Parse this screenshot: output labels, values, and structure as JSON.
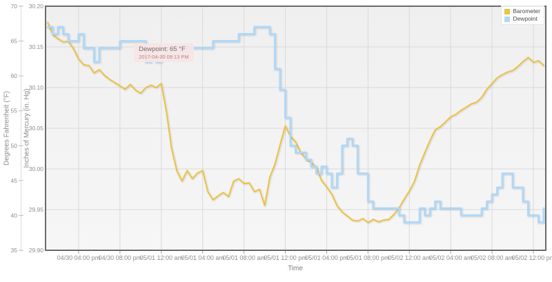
{
  "chart_data": {
    "type": "line",
    "title": "",
    "x_axis": {
      "label": "Time",
      "tick_labels": [
        "04/30 04:00 pm",
        "04/30 08:00 pm",
        "05/01 12:00 am",
        "05/01 04:00 am",
        "05/01 08:00 am",
        "05/01 12:00 pm",
        "05/01 04:00 pm",
        "05/01 08:00 pm",
        "05/02 12:00 am",
        "05/02 04:00 am",
        "05/02 08:00 am",
        "05/02 12:00 pm"
      ],
      "tick_hours": [
        3,
        7,
        11,
        15,
        19,
        23,
        27,
        31,
        35,
        39,
        43,
        47
      ],
      "domain_hours": [
        -0.2,
        48.2
      ],
      "hours_start": 0,
      "hours_step": 0.5
    },
    "y_axis_f": {
      "label": "Degrees Fahrenheit (°F)",
      "tick_labels": [
        "70",
        "65",
        "60",
        "55",
        "50",
        "45",
        "40",
        "35"
      ],
      "tick_values": [
        70,
        65,
        60,
        55,
        50,
        45,
        40,
        35
      ],
      "range": [
        35,
        70
      ]
    },
    "y_axis_hg": {
      "label": "Inches of Mercury (in. Hg)",
      "tick_labels": [
        "30.20",
        "30.15",
        "30.10",
        "30.05",
        "30.00",
        "29.95",
        "29.90"
      ],
      "tick_values": [
        30.2,
        30.15,
        30.1,
        30.05,
        30.0,
        29.95,
        29.9
      ],
      "range": [
        29.9,
        30.2
      ]
    },
    "series": [
      {
        "name": "Barometer",
        "color": "#edc240",
        "axis": "hg",
        "step": false,
        "values": [
          30.18,
          30.165,
          30.16,
          30.156,
          30.157,
          30.148,
          30.135,
          30.128,
          30.127,
          30.118,
          30.122,
          30.115,
          30.11,
          30.106,
          30.102,
          30.098,
          30.104,
          30.097,
          30.093,
          30.1,
          30.103,
          30.1,
          30.105,
          30.07,
          30.025,
          29.998,
          29.985,
          29.998,
          29.988,
          29.995,
          29.998,
          29.972,
          29.962,
          29.967,
          29.971,
          29.966,
          29.985,
          29.988,
          29.982,
          29.983,
          29.972,
          29.975,
          29.955,
          29.99,
          30.006,
          30.03,
          30.053,
          30.04,
          30.033,
          30.02,
          30.012,
          30.008,
          30.002,
          29.986,
          29.978,
          29.969,
          29.955,
          29.947,
          29.942,
          29.937,
          29.936,
          29.939,
          29.934,
          29.938,
          29.935,
          29.937,
          29.938,
          29.944,
          29.952,
          29.963,
          29.973,
          29.985,
          30.005,
          30.02,
          30.035,
          30.048,
          30.052,
          30.058,
          30.064,
          30.067,
          30.072,
          30.076,
          30.08,
          30.082,
          30.088,
          30.098,
          30.105,
          30.112,
          30.116,
          30.119,
          30.121,
          30.126,
          30.132,
          30.137,
          30.131,
          30.133,
          30.127
        ]
      },
      {
        "name": "Dewpoint",
        "color": "#afd8f8",
        "axis": "f",
        "step": true,
        "values": [
          67,
          66,
          67,
          66,
          65,
          65,
          66,
          64,
          64,
          62,
          64,
          64,
          64,
          64,
          65,
          65,
          65,
          65,
          65,
          62,
          63,
          62,
          63,
          64,
          64,
          64,
          64,
          64,
          64,
          64,
          64,
          64,
          65,
          65,
          65,
          65,
          65,
          66,
          66,
          66,
          67,
          67,
          67,
          66,
          61,
          58,
          54,
          50,
          49,
          49,
          48,
          47,
          46,
          47,
          46,
          44,
          46,
          50,
          51,
          50,
          46,
          46,
          42,
          41,
          41,
          41,
          41,
          41,
          40,
          39,
          39,
          39,
          41,
          40,
          41,
          42,
          41,
          41,
          41,
          41,
          40,
          40,
          40,
          40,
          41,
          42,
          43,
          44,
          46,
          46,
          44,
          44,
          42,
          40,
          40,
          39,
          41
        ]
      }
    ],
    "tooltip": {
      "line1": "Dewpoint: 65 °F",
      "line2": "2017-04-30 09:13 PM",
      "hours": 8.22,
      "anchor_value_f": 65
    },
    "colors": {
      "plot_bg_top": "#efefef",
      "plot_bg_bottom": "#f6f6f6",
      "gridline": "#d9d9d9",
      "plot_border": "#696969",
      "tick_text": "#8c8c8c",
      "tick_mark": "#a0a0a0",
      "f_axis_line": "#dddddd",
      "tooltip_bg": "#f7e5e5",
      "tooltip_date_text": "#bd7f7f"
    }
  }
}
